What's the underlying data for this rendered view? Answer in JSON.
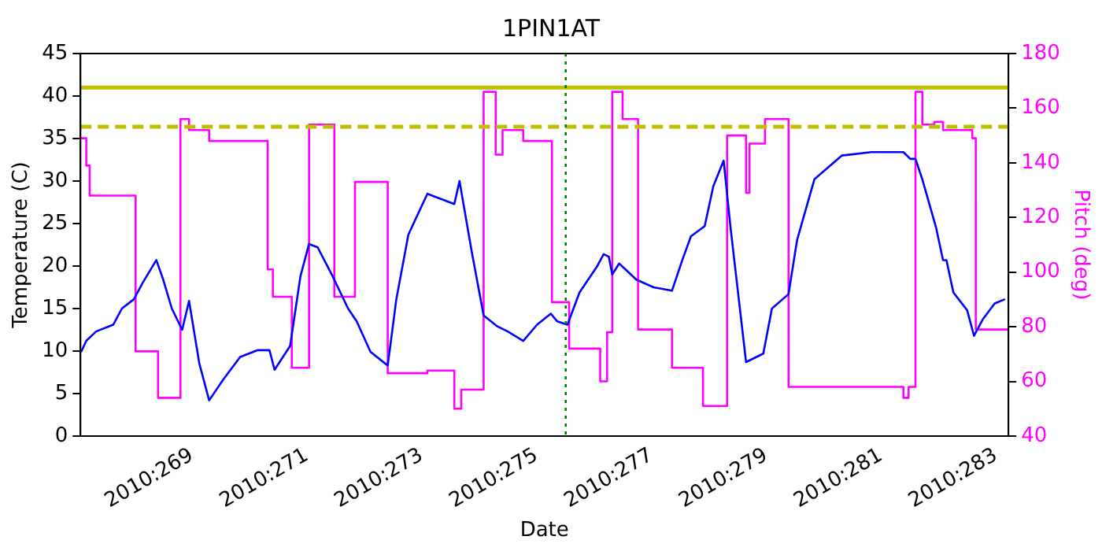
{
  "chart_data": {
    "type": "line",
    "title": "1PIN1AT",
    "xlabel": "Date",
    "ylabel": "Temperature (C)",
    "y2label": "Pitch (deg)",
    "xlim": [
      "2010-09-24T19:12",
      "2010-10-10T23:02"
    ],
    "xticks": [
      {
        "value": "2010-09-26",
        "label": "2010:269"
      },
      {
        "value": "2010-09-28",
        "label": "2010:271"
      },
      {
        "value": "2010-09-30",
        "label": "2010:273"
      },
      {
        "value": "2010-10-02",
        "label": "2010:275"
      },
      {
        "value": "2010-10-04",
        "label": "2010:277"
      },
      {
        "value": "2010-10-06",
        "label": "2010:279"
      },
      {
        "value": "2010-10-08",
        "label": "2010:281"
      },
      {
        "value": "2010-10-10",
        "label": "2010:283"
      }
    ],
    "ylim": [
      0,
      45
    ],
    "yticks": [
      0,
      5,
      10,
      15,
      20,
      25,
      30,
      35,
      40,
      45
    ],
    "y2lim": [
      40,
      180
    ],
    "y2ticks": [
      40,
      60,
      80,
      100,
      120,
      140,
      160,
      180
    ],
    "series": [
      {
        "color": "#0000ff",
        "x": [
          "2010-09-24T19:26",
          "2010-09-24T21:36",
          "2010-09-25T01:41",
          "2010-09-25T08:53",
          "2010-09-25T12:29",
          "2010-09-25T17:31",
          "2010-09-25T21:07",
          "2010-09-26T02:53",
          "2010-09-26T05:46",
          "2010-09-26T09:22",
          "2010-09-26T13:41",
          "2010-09-26T16:34",
          "2010-09-26T20:53",
          "2010-09-27T00:58",
          "2010-09-27T06:43",
          "2010-09-27T13:55",
          "2010-09-27T21:07",
          "2010-09-28T02:10",
          "2010-09-28T04:19",
          "2010-09-28T10:48",
          "2010-09-28T15:07",
          "2010-09-28T18:43",
          "2010-09-28T22:19",
          "2010-09-29T04:34",
          "2010-09-29T11:02",
          "2010-09-29T14:38",
          "2010-09-29T20:24",
          "2010-09-30T03:36",
          "2010-09-30T07:12",
          "2010-09-30T12:14",
          "2010-09-30T20:10",
          "2010-10-01T07:26",
          "2010-10-01T09:36",
          "2010-10-01T14:38",
          "2010-10-01T19:41",
          "2010-10-02T01:26",
          "2010-10-02T05:46",
          "2010-10-02T12:14",
          "2010-10-02T18:00",
          "2010-10-02T23:46",
          "2010-10-03T02:24",
          "2010-10-03T06:43",
          "2010-10-03T11:46",
          "2010-10-03T18:58",
          "2010-10-03T21:50",
          "2010-10-04T00:00",
          "2010-10-04T01:26",
          "2010-10-04T04:19",
          "2010-10-04T11:31",
          "2010-10-04T18:43",
          "2010-10-05T02:24",
          "2010-10-05T06:43",
          "2010-10-05T10:19",
          "2010-10-05T16:05",
          "2010-10-05T19:41",
          "2010-10-06T00:00",
          "2010-10-06T02:53",
          "2010-10-06T09:22",
          "2010-10-06T16:34",
          "2010-10-06T20:10",
          "2010-10-07T03:07",
          "2010-10-07T06:43",
          "2010-10-07T13:55",
          "2010-10-08T01:26",
          "2010-10-08T13:41",
          "2010-10-09T03:07",
          "2010-10-09T06:00",
          "2010-10-09T08:10",
          "2010-10-09T11:02",
          "2010-10-09T16:48",
          "2010-10-09T19:41",
          "2010-10-09T21:07",
          "2010-10-10T00:00",
          "2010-10-10T05:46",
          "2010-10-10T08:38",
          "2010-10-10T12:14",
          "2010-10-10T17:17",
          "2010-10-10T21:36"
        ],
        "values": [
          9.9,
          11.2,
          12.3,
          13.1,
          15,
          16.1,
          18,
          20.7,
          18.4,
          15,
          12.5,
          15.9,
          8.5,
          4.2,
          6.6,
          9.3,
          10.1,
          10.1,
          7.8,
          10.6,
          18.8,
          22.6,
          22.2,
          18.8,
          15,
          13.5,
          9.9,
          8.3,
          16.1,
          23.7,
          28.5,
          27.3,
          30,
          21.8,
          14.2,
          12.9,
          12.3,
          11.2,
          13.1,
          14.4,
          13.5,
          13.1,
          16.9,
          19.9,
          21.4,
          21.1,
          19,
          20.3,
          18.4,
          17.5,
          17.1,
          20.7,
          23.5,
          24.7,
          29.4,
          32.4,
          24.5,
          8.7,
          9.7,
          15,
          16.7,
          23.1,
          30.2,
          33,
          33.4,
          33.4,
          32.6,
          32.6,
          30.2,
          24.5,
          20.7,
          20.7,
          16.9,
          14.8,
          11.8,
          13.7,
          15.6,
          16.1
        ]
      },
      {
        "type": "step",
        "axis": "y2",
        "color": "#ff00ff",
        "x": [
          "2010-09-24T19:26",
          "2010-09-24T21:36",
          "2010-09-24T23:02",
          "2010-09-25T18:14",
          "2010-09-26T03:36",
          "2010-09-26T12:58",
          "2010-09-26T16:34",
          "2010-09-27T00:58",
          "2010-09-28T01:26",
          "2010-09-28T03:36",
          "2010-09-28T11:31",
          "2010-09-28T18:43",
          "2010-09-29T05:17",
          "2010-09-29T13:55",
          "2010-09-30T03:36",
          "2010-09-30T20:10",
          "2010-10-01T07:26",
          "2010-10-01T10:19",
          "2010-10-01T19:41",
          "2010-10-02T00:43",
          "2010-10-02T03:36",
          "2010-10-02T12:14",
          "2010-10-03T00:14",
          "2010-10-03T07:26",
          "2010-10-03T20:24",
          "2010-10-03T23:17",
          "2010-10-04T01:26",
          "2010-10-04T05:46",
          "2010-10-04T12:14",
          "2010-10-05T02:24",
          "2010-10-05T15:22",
          "2010-10-06T01:26",
          "2010-10-06T09:22",
          "2010-10-06T10:48",
          "2010-10-06T17:17",
          "2010-10-07T03:07",
          "2010-10-09T03:07",
          "2010-10-09T05:17",
          "2010-10-09T08:10",
          "2010-10-09T11:02",
          "2010-10-09T16:05",
          "2010-10-09T19:41",
          "2010-10-10T05:02",
          "2010-10-10T07:55",
          "2010-10-10T09:22",
          "2010-10-10T23:02"
        ],
        "values": [
          149,
          139,
          128,
          71,
          54,
          156,
          152,
          148,
          101,
          91,
          65,
          154,
          91,
          133,
          63,
          64,
          50,
          57,
          166,
          143,
          152,
          148,
          89,
          72,
          60,
          78,
          166,
          156,
          79,
          65,
          51,
          150,
          129,
          147,
          156,
          58,
          54,
          58,
          166,
          154,
          155,
          152,
          152,
          149,
          79,
          79
        ]
      }
    ],
    "ref_lines": [
      {
        "axis": "y",
        "value": 41,
        "color": "#bfbf00",
        "line_style": "solid"
      },
      {
        "axis": "y",
        "value": 36.4,
        "color": "#bfbf00",
        "line_style": "dashed"
      },
      {
        "axis": "x",
        "value": "2010-10-03T06:00",
        "color": "#008000",
        "line_style": "dotted"
      }
    ]
  }
}
